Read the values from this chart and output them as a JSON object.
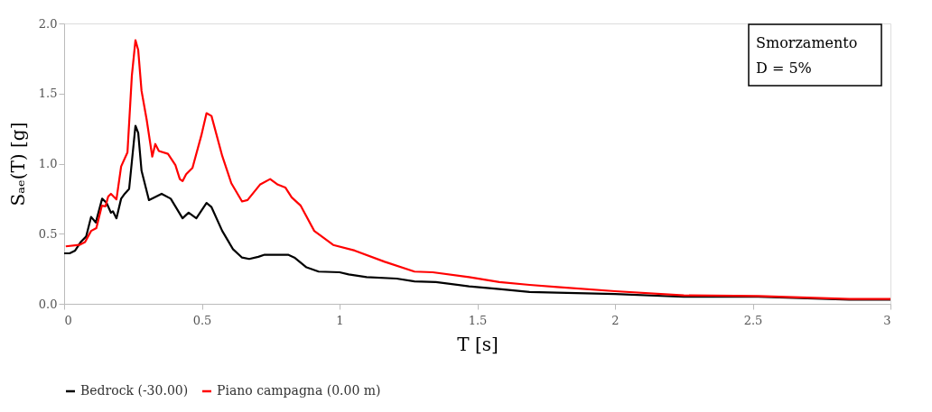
{
  "chart_data": {
    "type": "line",
    "xlabel": "T [s]",
    "ylabel": "Sₐₑ(T) [g]",
    "annotations": [
      "Smorzamento",
      "D = 5%"
    ],
    "xlim": [
      0,
      3
    ],
    "xticks": [
      0,
      0.5,
      1,
      1.5,
      2,
      2.5,
      3
    ],
    "ylim": [
      0,
      2
    ],
    "yticks": [
      {
        "value": 0,
        "label": "0.0"
      },
      0.5,
      {
        "value": 1,
        "label": "1.0"
      },
      1.5,
      {
        "value": 2,
        "label": "2.0"
      }
    ],
    "grid": false,
    "legend": "bottom",
    "marker": "none",
    "line_style": "solid",
    "series": [
      {
        "name": "Bedrock (-30.00)",
        "color": "#000000",
        "x": [
          0,
          0.02,
          0.04,
          0.06,
          0.08,
          0.098,
          0.115,
          0.138,
          0.154,
          0.17,
          0.177,
          0.19,
          0.207,
          0.22,
          0.236,
          0.259,
          0.269,
          0.281,
          0.308,
          0.354,
          0.387,
          0.43,
          0.452,
          0.48,
          0.517,
          0.535,
          0.574,
          0.613,
          0.646,
          0.672,
          0.705,
          0.728,
          0.76,
          0.813,
          0.836,
          0.88,
          0.924,
          1.0,
          1.033,
          1.098,
          1.207,
          1.272,
          1.35,
          1.47,
          1.58,
          1.69,
          1.79,
          2.0,
          2.25,
          2.52,
          2.85,
          3.0
        ],
        "values": [
          0.36,
          0.36,
          0.38,
          0.44,
          0.48,
          0.62,
          0.58,
          0.75,
          0.72,
          0.65,
          0.66,
          0.61,
          0.75,
          0.785,
          0.82,
          1.27,
          1.22,
          0.95,
          0.74,
          0.785,
          0.75,
          0.61,
          0.65,
          0.61,
          0.72,
          0.69,
          0.52,
          0.39,
          0.33,
          0.32,
          0.335,
          0.35,
          0.35,
          0.35,
          0.33,
          0.26,
          0.23,
          0.225,
          0.21,
          0.19,
          0.18,
          0.16,
          0.155,
          0.125,
          0.105,
          0.085,
          0.08,
          0.07,
          0.05,
          0.05,
          0.03,
          0.03
        ]
      },
      {
        "name": "Piano campagna (0.00 m)",
        "color": "#ff0000",
        "x": [
          0.006,
          0.055,
          0.076,
          0.098,
          0.117,
          0.137,
          0.15,
          0.16,
          0.17,
          0.19,
          0.207,
          0.23,
          0.246,
          0.259,
          0.269,
          0.281,
          0.3,
          0.32,
          0.331,
          0.344,
          0.377,
          0.404,
          0.42,
          0.43,
          0.443,
          0.466,
          0.498,
          0.517,
          0.535,
          0.574,
          0.607,
          0.646,
          0.666,
          0.711,
          0.748,
          0.776,
          0.803,
          0.826,
          0.859,
          0.908,
          0.977,
          1.055,
          1.164,
          1.272,
          1.338,
          1.47,
          1.58,
          1.69,
          1.79,
          2.0,
          2.25,
          2.52,
          2.85,
          3.0
        ],
        "values": [
          0.41,
          0.42,
          0.44,
          0.52,
          0.54,
          0.7,
          0.695,
          0.765,
          0.785,
          0.745,
          0.98,
          1.08,
          1.63,
          1.88,
          1.81,
          1.52,
          1.31,
          1.05,
          1.14,
          1.09,
          1.07,
          0.99,
          0.89,
          0.875,
          0.925,
          0.97,
          1.2,
          1.36,
          1.34,
          1.055,
          0.86,
          0.73,
          0.74,
          0.85,
          0.89,
          0.85,
          0.83,
          0.76,
          0.7,
          0.52,
          0.42,
          0.38,
          0.3,
          0.23,
          0.225,
          0.19,
          0.155,
          0.135,
          0.12,
          0.09,
          0.06,
          0.055,
          0.035,
          0.035
        ]
      }
    ]
  }
}
